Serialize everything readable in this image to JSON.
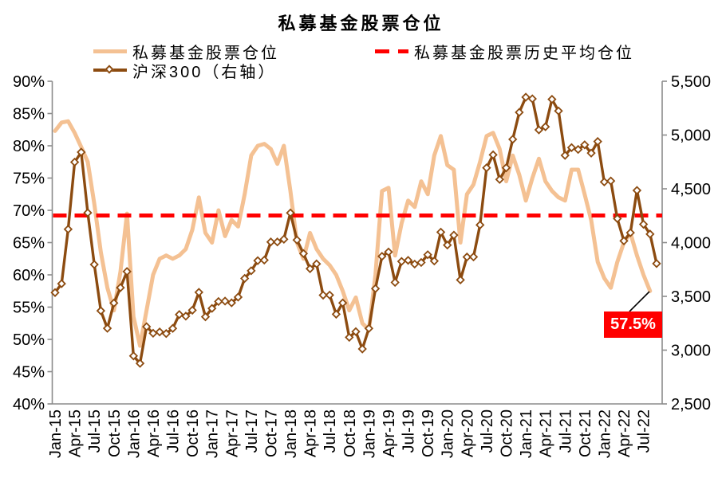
{
  "title": "私募基金股票仓位",
  "legend": {
    "position_series": "私募基金股票仓位",
    "csi300_series": "沪深300（右轴）",
    "average_series": "私募基金股票历史平均仓位"
  },
  "annotation": {
    "text": "57.5%"
  },
  "colors": {
    "position_line": "#F4C193",
    "csi300_line": "#8C4B10",
    "average_line": "#FF0000",
    "axis": "#8C8C8C",
    "annotation_bg": "#FF0000",
    "annotation_text": "#FFFFFF",
    "callout": "#000000"
  },
  "chart_data": {
    "type": "line",
    "title": "私募基金股票仓位",
    "legend_position": "top",
    "grid": false,
    "x_tick_every": 3,
    "x_tick_labels": [
      "Jan-15",
      "Apr-15",
      "Jul-15",
      "Oct-15",
      "Jan-16",
      "Apr-16",
      "Jul-16",
      "Oct-16",
      "Jan-17",
      "Apr-17",
      "Jul-17",
      "Oct-17",
      "Jan-18",
      "Apr-18",
      "Jul-18",
      "Oct-18",
      "Jan-19",
      "Apr-19",
      "Jul-19",
      "Oct-19",
      "Jan-20",
      "Apr-20",
      "Jul-20",
      "Oct-20",
      "Jan-21",
      "Apr-21",
      "Jul-21",
      "Oct-21",
      "Jan-22",
      "Apr-22",
      "Jul-22"
    ],
    "months": [
      "Jan-15",
      "Feb-15",
      "Mar-15",
      "Apr-15",
      "May-15",
      "Jun-15",
      "Jul-15",
      "Aug-15",
      "Sep-15",
      "Oct-15",
      "Nov-15",
      "Dec-15",
      "Jan-16",
      "Feb-16",
      "Mar-16",
      "Apr-16",
      "May-16",
      "Jun-16",
      "Jul-16",
      "Aug-16",
      "Sep-16",
      "Oct-16",
      "Nov-16",
      "Dec-16",
      "Jan-17",
      "Feb-17",
      "Mar-17",
      "Apr-17",
      "May-17",
      "Jun-17",
      "Jul-17",
      "Aug-17",
      "Sep-17",
      "Oct-17",
      "Nov-17",
      "Dec-17",
      "Jan-18",
      "Feb-18",
      "Mar-18",
      "Apr-18",
      "May-18",
      "Jun-18",
      "Jul-18",
      "Aug-18",
      "Sep-18",
      "Oct-18",
      "Nov-18",
      "Dec-18",
      "Jan-19",
      "Feb-19",
      "Mar-19",
      "Apr-19",
      "May-19",
      "Jun-19",
      "Jul-19",
      "Aug-19",
      "Sep-19",
      "Oct-19",
      "Nov-19",
      "Dec-19",
      "Jan-20",
      "Feb-20",
      "Mar-20",
      "Apr-20",
      "May-20",
      "Jun-20",
      "Jul-20",
      "Aug-20",
      "Sep-20",
      "Oct-20",
      "Nov-20",
      "Dec-20",
      "Jan-21",
      "Feb-21",
      "Mar-21",
      "Apr-21",
      "May-21",
      "Jun-21",
      "Jul-21",
      "Aug-21",
      "Sep-21",
      "Oct-21",
      "Nov-21",
      "Dec-21",
      "Jan-22",
      "Feb-22",
      "Mar-22",
      "Apr-22",
      "May-22",
      "Jun-22",
      "Jul-22",
      "Aug-22",
      "Sep-22"
    ],
    "series": [
      {
        "name": "私募基金股票仓位",
        "axis": "left",
        "unit": "%",
        "color": "#F4C193",
        "marker": "none",
        "values": [
          82.3,
          83.6,
          83.8,
          82,
          79.8,
          77.5,
          71,
          63.5,
          58,
          54.5,
          60.5,
          69.5,
          53.5,
          49,
          54.5,
          60,
          62.5,
          63,
          62.5,
          63,
          64,
          67,
          72,
          66.5,
          65,
          70,
          66,
          68.5,
          67.5,
          72.5,
          78.5,
          80,
          80.3,
          79.5,
          77.2,
          80,
          73,
          65,
          62.5,
          66.5,
          64,
          62.5,
          61.5,
          60,
          57.5,
          54.5,
          56.5,
          52.5,
          51.5,
          60,
          73,
          73.5,
          63,
          68,
          71.5,
          70.5,
          74.5,
          72.5,
          78.5,
          81.5,
          77,
          76.3,
          65,
          72.5,
          74,
          77.5,
          81.5,
          82,
          79.5,
          74.5,
          78.5,
          75.5,
          71.5,
          75,
          78,
          74.5,
          73,
          72,
          71.5,
          76.3,
          76.3,
          72.5,
          68.5,
          62,
          59.5,
          58,
          62,
          65,
          66.5,
          63,
          60,
          57.5,
          null
        ]
      },
      {
        "name": "沪深300（右轴）",
        "axis": "right",
        "unit": "points",
        "color": "#8C4B10",
        "marker": "diamond",
        "values": [
          3535,
          3618,
          4124,
          4748,
          4841,
          4277,
          3796,
          3366,
          3203,
          3438,
          3581,
          3731,
          2946,
          2877,
          3218,
          3157,
          3169,
          3154,
          3202,
          3331,
          3316,
          3371,
          3538,
          3310,
          3388,
          3452,
          3456,
          3440,
          3493,
          3667,
          3738,
          3832,
          3837,
          4006,
          4006,
          4031,
          4276,
          4024,
          3898,
          3757,
          3802,
          3511,
          3512,
          3334,
          3439,
          3119,
          3172,
          3011,
          3202,
          3572,
          3872,
          3913,
          3630,
          3825,
          3835,
          3800,
          3815,
          3887,
          3829,
          4097,
          3977,
          4069,
          3653,
          3866,
          3867,
          4164,
          4695,
          4816,
          4587,
          4695,
          4960,
          5211,
          5352,
          5337,
          5048,
          5077,
          5332,
          5224,
          4811,
          4883,
          4866,
          4909,
          4832,
          4940,
          4564,
          4573,
          4223,
          4016,
          4092,
          4485,
          4170,
          4079,
          3805
        ]
      }
    ],
    "average_line": {
      "name": "私募基金股票历史平均仓位",
      "axis": "left",
      "value": 69.2,
      "style": "dashed",
      "color": "#FF0000"
    },
    "left_axis": {
      "min": 40,
      "max": 90,
      "step": 5,
      "tick_labels": [
        "90%",
        "85%",
        "80%",
        "75%",
        "70%",
        "65%",
        "60%",
        "55%",
        "50%",
        "45%",
        "40%"
      ]
    },
    "right_axis": {
      "min": 2500,
      "max": 5500,
      "step": 500,
      "tick_labels": [
        "5,500",
        "5,000",
        "4,500",
        "4,000",
        "3,500",
        "3,000",
        "2,500"
      ]
    },
    "annotation": {
      "text": "57.5%",
      "attached_to": "私募基金股票仓位 last point (Aug-22)"
    }
  }
}
